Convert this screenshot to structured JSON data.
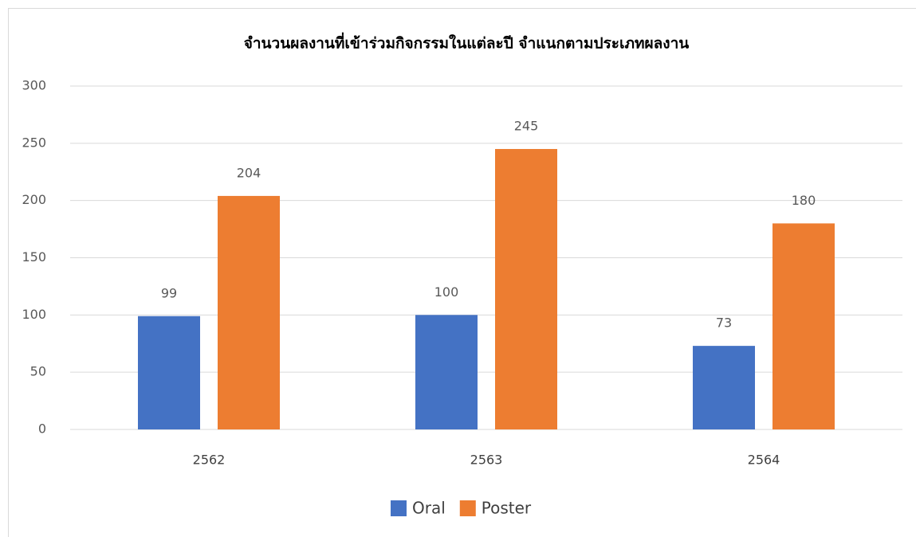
{
  "chart_data": {
    "type": "bar",
    "title": "จำนวนผลงานที่เข้าร่วมกิจกรรมในแต่ละปี จำแนกตามประเภทผลงาน",
    "categories": [
      "2562",
      "2563",
      "2564"
    ],
    "series": [
      {
        "name": "Oral",
        "color": "#4472c4",
        "values": [
          99,
          100,
          73
        ]
      },
      {
        "name": "Poster",
        "color": "#ed7d31",
        "values": [
          204,
          245,
          180
        ]
      }
    ],
    "ylim": [
      0,
      300
    ],
    "yticks": [
      0,
      50,
      100,
      150,
      200,
      250,
      300
    ],
    "grid": true,
    "legend": "bottom"
  }
}
